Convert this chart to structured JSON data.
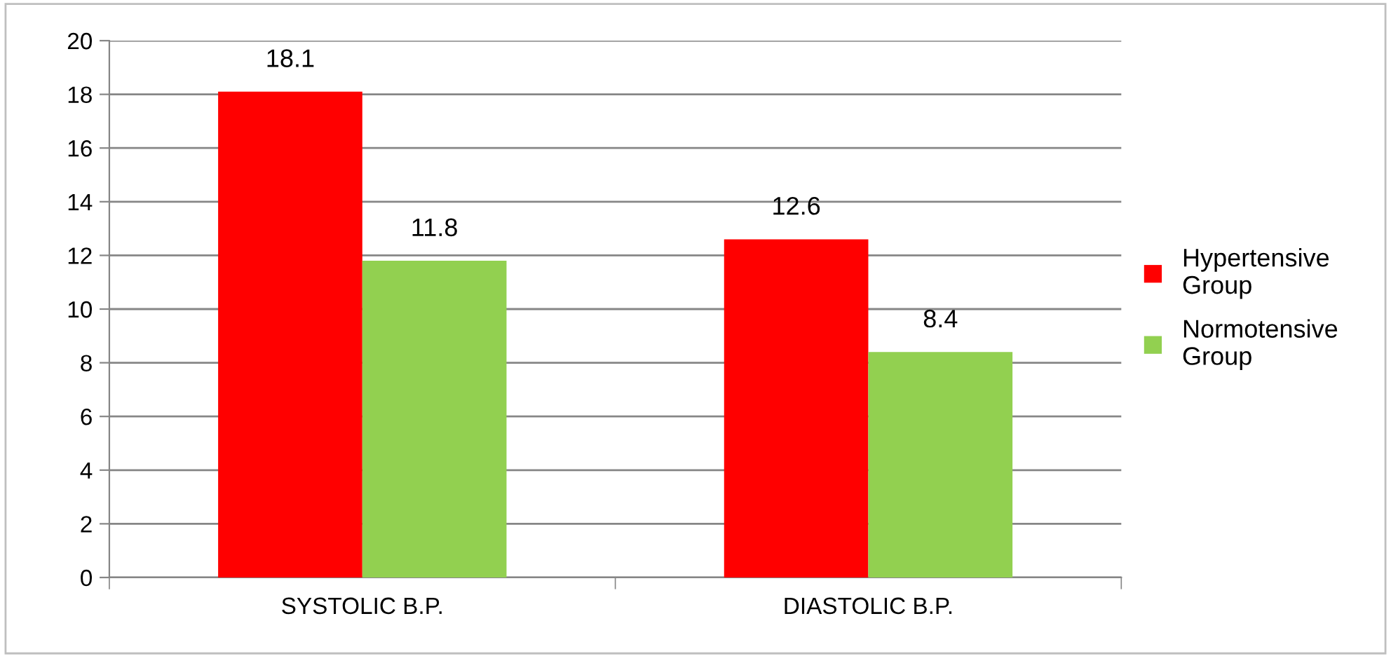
{
  "chart_data": {
    "type": "bar",
    "categories": [
      "SYSTOLIC B.P.",
      "DIASTOLIC B.P."
    ],
    "series": [
      {
        "name": "Hypertensive Group",
        "color": "#ff0000",
        "values": [
          18.1,
          12.6
        ]
      },
      {
        "name": "Normotensive Group",
        "color": "#92d050",
        "values": [
          11.8,
          8.4
        ]
      }
    ],
    "ylim": [
      0,
      20
    ],
    "yticks": [
      0,
      2,
      4,
      6,
      8,
      10,
      12,
      14,
      16,
      18,
      20
    ],
    "grid": "y",
    "legend": "right",
    "data_labels": true
  }
}
